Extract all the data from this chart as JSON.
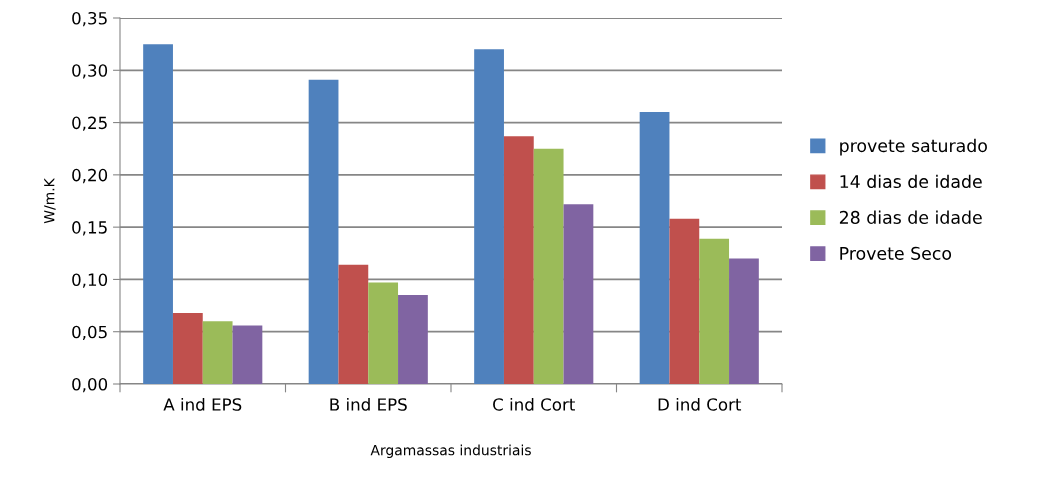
{
  "chart_data": {
    "type": "bar",
    "xlabel": "Argamassas industriais",
    "ylabel": "W/m.K",
    "categories": [
      "A ind EPS",
      "B ind EPS",
      "C ind Cort",
      "D ind Cort"
    ],
    "series": [
      {
        "name": "provete saturado",
        "color": "#4f81bd",
        "values": [
          0.325,
          0.291,
          0.32,
          0.26
        ]
      },
      {
        "name": "14 dias de idade",
        "color": "#c0504d",
        "values": [
          0.068,
          0.114,
          0.237,
          0.158
        ]
      },
      {
        "name": "28 dias de idade",
        "color": "#9bbb59",
        "values": [
          0.06,
          0.097,
          0.225,
          0.139
        ]
      },
      {
        "name": "Provete Seco",
        "color": "#8064a2",
        "values": [
          0.056,
          0.085,
          0.172,
          0.12
        ]
      }
    ],
    "ylim": [
      0,
      0.35
    ],
    "yticks": [
      {
        "value": 0,
        "label": "0,00"
      },
      {
        "value": 0.05,
        "label": "0,05"
      },
      {
        "value": 0.1,
        "label": "0,10"
      },
      {
        "value": 0.15,
        "label": "0,15"
      },
      {
        "value": 0.2,
        "label": "0,20"
      },
      {
        "value": 0.25,
        "label": "0,25"
      },
      {
        "value": 0.3,
        "label": "0,30"
      },
      {
        "value": 0.35,
        "label": "0,35"
      }
    ],
    "grid": "y",
    "legend": "right"
  }
}
